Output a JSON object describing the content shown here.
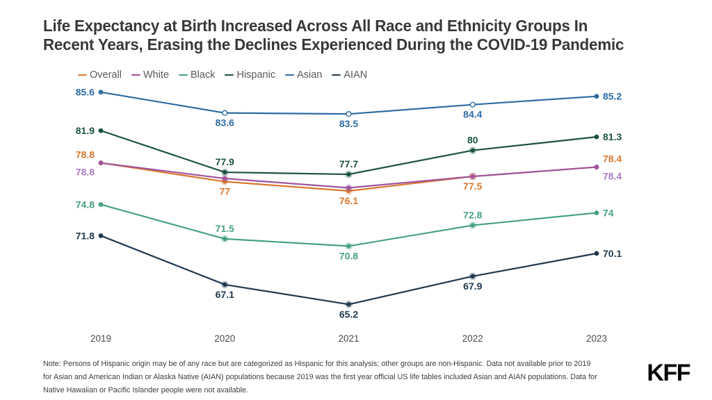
{
  "title": {
    "lines": [
      "Life Expectancy at Birth Increased Across All Race and Ethnicity Groups In",
      "Recent Years, Erasing the Declines Experienced During the COVID-19 Pandemic"
    ]
  },
  "legend": {
    "items": [
      {
        "label": "Overall",
        "color": "#D9782F"
      },
      {
        "label": "White",
        "color": "#A1549E"
      },
      {
        "label": "Black",
        "color": "#46A17E"
      },
      {
        "label": "Hispanic",
        "color": "#1C5244"
      },
      {
        "label": "Asian",
        "color": "#2E6CA4"
      },
      {
        "label": "AIAN",
        "color": "#21394F"
      }
    ]
  },
  "chart_data": {
    "type": "line",
    "title": "Life Expectancy at Birth Increased Across All Race and Ethnicity Groups In Recent Years, Erasing the Declines Experienced During the COVID-19 Pandemic",
    "x": [
      2019,
      2020,
      2021,
      2022,
      2023
    ],
    "xlabel": "",
    "ylabel": "",
    "ylim": [
      64,
      87
    ],
    "grid": false,
    "legend_position": "top-left",
    "series": [
      {
        "name": "Overall",
        "color": "#D9782F",
        "label_color": "#D9782F",
        "values": [
          78.8,
          77,
          76.1,
          77.5,
          78.4
        ],
        "labels": [
          "78.8",
          "77",
          "76.1",
          "77.5",
          "78.4"
        ],
        "label_pos": [
          "left-up",
          "below",
          "below",
          "below",
          "right-up"
        ]
      },
      {
        "name": "White",
        "color": "#A1549E",
        "label_color": "#AC7CC6",
        "values": [
          78.8,
          77.3,
          76.4,
          77.5,
          78.4
        ],
        "labels": [
          "78.8",
          null,
          null,
          null,
          "78.4"
        ],
        "label_pos": [
          "left-down",
          null,
          null,
          null,
          "right-down"
        ]
      },
      {
        "name": "Black",
        "color": "#46A17E",
        "label_color": "#46A17E",
        "values": [
          74.8,
          71.5,
          70.8,
          72.8,
          74
        ],
        "labels": [
          "74.8",
          "71.5",
          "70.8",
          "72.8",
          "74"
        ],
        "label_pos": [
          "left",
          "above",
          "below",
          "above",
          "right"
        ]
      },
      {
        "name": "Hispanic",
        "color": "#1C5244",
        "label_color": "#1C5244",
        "values": [
          81.9,
          77.9,
          77.7,
          80,
          81.3
        ],
        "labels": [
          "81.9",
          "77.9",
          "77.7",
          "80",
          "81.3"
        ],
        "label_pos": [
          "left",
          "above",
          "above",
          "above",
          "right"
        ]
      },
      {
        "name": "Asian",
        "color": "#2E6CA4",
        "label_color": "#2E6CA4",
        "point_style": "hollow",
        "values": [
          85.6,
          83.6,
          83.5,
          84.4,
          85.2
        ],
        "labels": [
          "85.6",
          "83.6",
          "83.5",
          "84.4",
          "85.2"
        ],
        "label_pos": [
          "left",
          "below",
          "below",
          "below",
          "right"
        ]
      },
      {
        "name": "AIAN",
        "color": "#21394F",
        "label_color": "#21394F",
        "values": [
          71.8,
          67.1,
          65.2,
          67.9,
          70.1
        ],
        "labels": [
          "71.8",
          "67.1",
          "65.2",
          "67.9",
          "70.1"
        ],
        "label_pos": [
          "left",
          "below",
          "below",
          "below",
          "right"
        ]
      }
    ]
  },
  "note": {
    "lines": [
      "Note: Persons of Hispanic origin may be of any race but are categorized as Hispanic for this analysis; other groups are non-Hispanic. Data not available prior to 2019",
      "for Asian and American Indian or Alaska Native (AIAN) populations because 2019 was the first year official US life tables included Asian and AIAN populations. Data for",
      "Native Hawaiian or  Pacific Islander people were not available."
    ]
  },
  "logo": {
    "text": "KFF"
  }
}
